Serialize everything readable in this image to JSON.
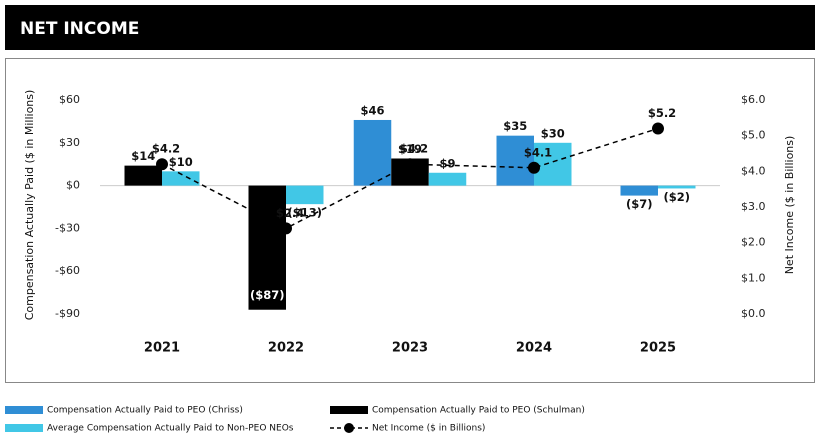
{
  "chart_data": {
    "type": "bar",
    "title": "NET INCOME",
    "y_label": "Compensation Actually Paid ($ in Millions)",
    "y2_label": "Net Income ($ in Billions)",
    "categories": [
      "2021",
      "2022",
      "2023",
      "2024",
      "2025"
    ],
    "series": [
      {
        "name": "Compensation Actually Paid to PEO (Chriss)",
        "type": "bar",
        "color": "#2f8ed5",
        "values": [
          null,
          null,
          46,
          35,
          -7
        ],
        "value_labels": [
          null,
          null,
          "$46",
          "$35",
          "($7)"
        ]
      },
      {
        "name": "Compensation Actually Paid to PEO (Schulman)",
        "type": "bar",
        "color": "#000000",
        "values": [
          14,
          -87,
          19,
          null,
          null
        ],
        "value_labels": [
          "$14",
          "($87)",
          "$19",
          null,
          null
        ]
      },
      {
        "name": "Average Compensation Actually Paid to Non-PEO NEOs",
        "type": "bar",
        "color": "#41c7e6",
        "values": [
          10,
          -13,
          9,
          30,
          -2
        ],
        "value_labels": [
          "$10",
          "($13)",
          "$9",
          "$30",
          "($2)"
        ]
      },
      {
        "name": "Net Income ($ in Billions)",
        "type": "line",
        "axis": "y2",
        "color": "#000000",
        "values": [
          4.2,
          2.4,
          4.2,
          4.1,
          5.2
        ],
        "value_labels": [
          "$4.2",
          "$2.4",
          "$4.2",
          "$4.1",
          "$5.2"
        ]
      }
    ],
    "ylim": [
      -90,
      60
    ],
    "yticks": [
      {
        "value": 60,
        "label": "$60"
      },
      {
        "value": 30,
        "label": "$30"
      },
      {
        "value": 0,
        "label": "$0"
      },
      {
        "value": -30,
        "label": "-$30"
      },
      {
        "value": -60,
        "label": "-$60"
      },
      {
        "value": -90,
        "label": "-$90"
      }
    ],
    "y2lim": [
      0,
      6
    ],
    "y2ticks": [
      {
        "value": 6,
        "label": "$6.0"
      },
      {
        "value": 5,
        "label": "$5.0"
      },
      {
        "value": 4,
        "label": "$4.0"
      },
      {
        "value": 3,
        "label": "$3.0"
      },
      {
        "value": 2,
        "label": "$2.0"
      },
      {
        "value": 1,
        "label": "$1.0"
      },
      {
        "value": 0,
        "label": "$0.0"
      }
    ]
  }
}
